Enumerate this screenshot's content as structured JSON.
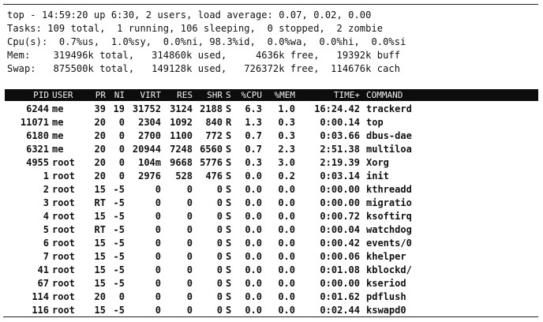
{
  "summary": {
    "line1": "top - 14:59:20 up 6:30, 2 users, load average: 0.07, 0.02, 0.00",
    "line2": "Tasks: 109 total,  1 running, 106 sleeping,  0 stopped,  2 zombie",
    "line3": "Cpu(s):  0.7%us,  1.0%sy,  0.0%ni, 98.3%id,  0.0%wa,  0.0%hi,  0.0%si",
    "line4": "Mem:    319496k total,   314860k used,     4636k free,   19392k buff",
    "line5": "Swap:   875500k total,   149128k used,   726372k free,  114676k cach"
  },
  "columns": [
    "PID",
    "USER",
    "PR",
    "NI",
    "VIRT",
    "RES",
    "SHR",
    "S",
    "%CPU",
    "%MEM",
    "TIME+",
    "COMMAND"
  ],
  "processes": [
    [
      "6244",
      "me",
      "39",
      "19",
      "31752",
      "3124",
      "2188",
      "S",
      "6.3",
      "1.0",
      "16:24.42",
      "trackerd"
    ],
    [
      "11071",
      "me",
      "20",
      "0",
      "2304",
      "1092",
      "840",
      "R",
      "1.3",
      "0.3",
      "0:00.14",
      "top"
    ],
    [
      "6180",
      "me",
      "20",
      "0",
      "2700",
      "1100",
      "772",
      "S",
      "0.7",
      "0.3",
      "0:03.66",
      "dbus-dae"
    ],
    [
      "6321",
      "me",
      "20",
      "0",
      "20944",
      "7248",
      "6560",
      "S",
      "0.7",
      "2.3",
      "2:51.38",
      "multiloa"
    ],
    [
      "4955",
      "root",
      "20",
      "0",
      "104m",
      "9668",
      "5776",
      "S",
      "0.3",
      "3.0",
      "2:19.39",
      "Xorg"
    ],
    [
      "1",
      "root",
      "20",
      "0",
      "2976",
      "528",
      "476",
      "S",
      "0.0",
      "0.2",
      "0:03.14",
      "init"
    ],
    [
      "2",
      "root",
      "15",
      "-5",
      "0",
      "0",
      "0",
      "S",
      "0.0",
      "0.0",
      "0:00.00",
      "kthreadd"
    ],
    [
      "3",
      "root",
      "RT",
      "-5",
      "0",
      "0",
      "0",
      "S",
      "0.0",
      "0.0",
      "0:00.00",
      "migratio"
    ],
    [
      "4",
      "root",
      "15",
      "-5",
      "0",
      "0",
      "0",
      "S",
      "0.0",
      "0.0",
      "0:00.72",
      "ksoftirq"
    ],
    [
      "5",
      "root",
      "RT",
      "-5",
      "0",
      "0",
      "0",
      "S",
      "0.0",
      "0.0",
      "0:00.04",
      "watchdog"
    ],
    [
      "6",
      "root",
      "15",
      "-5",
      "0",
      "0",
      "0",
      "S",
      "0.0",
      "0.0",
      "0:00.42",
      "events/0"
    ],
    [
      "7",
      "root",
      "15",
      "-5",
      "0",
      "0",
      "0",
      "S",
      "0.0",
      "0.0",
      "0:00.06",
      "khelper"
    ],
    [
      "41",
      "root",
      "15",
      "-5",
      "0",
      "0",
      "0",
      "S",
      "0.0",
      "0.0",
      "0:01.08",
      "kblockd/"
    ],
    [
      "67",
      "root",
      "15",
      "-5",
      "0",
      "0",
      "0",
      "S",
      "0.0",
      "0.0",
      "0:00.00",
      "kseriod"
    ],
    [
      "114",
      "root",
      "20",
      "0",
      "0",
      "0",
      "0",
      "S",
      "0.0",
      "0.0",
      "0:01.62",
      "pdflush"
    ],
    [
      "116",
      "root",
      "15",
      "-5",
      "0",
      "0",
      "0",
      "S",
      "0.0",
      "0.0",
      "0:02.44",
      "kswapd0"
    ]
  ]
}
